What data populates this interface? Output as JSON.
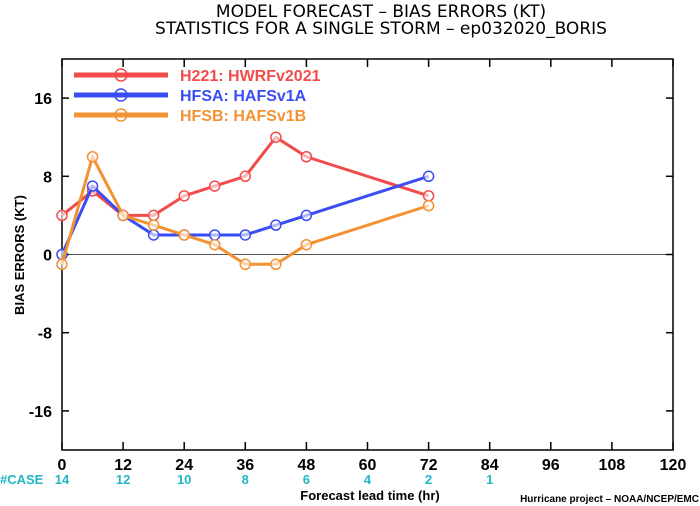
{
  "chart_data": {
    "type": "line",
    "title": "MODEL FORECAST – BIAS ERRORS (KT)",
    "subtitle": "STATISTICS FOR A SINGLE STORM – ep032020_BORIS",
    "xlabel": "Forecast lead time (hr)",
    "ylabel": "BIAS ERRORS (KT)",
    "xlim": [
      0,
      120
    ],
    "ylim": [
      -20,
      20
    ],
    "xticks": [
      0,
      12,
      24,
      36,
      48,
      60,
      72,
      84,
      96,
      108,
      120
    ],
    "yticks": [
      -16,
      -8,
      0,
      8,
      16
    ],
    "legend_position": "top-left",
    "zero_line": true,
    "case_label": "#CASE",
    "case_x": [
      0,
      12,
      24,
      36,
      48,
      60,
      72,
      84
    ],
    "case_counts": [
      "14",
      "12",
      "10",
      "8",
      "6",
      "4",
      "2",
      "1"
    ],
    "credit": "Hurricane project – NOAA/NCEP/EMC",
    "series": [
      {
        "name": "H221: HWRFv2021",
        "color": "#f24b4b",
        "x": [
          0,
          6,
          12,
          18,
          24,
          30,
          36,
          42,
          48,
          72
        ],
        "values": [
          4,
          6.5,
          4,
          4,
          6,
          7,
          8,
          12,
          10,
          6
        ]
      },
      {
        "name": "HFSA: HAFSv1A",
        "color": "#3a4df2",
        "x": [
          0,
          6,
          12,
          18,
          24,
          30,
          36,
          42,
          48,
          72
        ],
        "values": [
          0,
          7,
          4,
          2,
          2,
          2,
          2,
          3,
          4,
          8
        ]
      },
      {
        "name": "HFSB: HAFSv1B",
        "color": "#f29233",
        "x": [
          0,
          6,
          12,
          18,
          24,
          30,
          36,
          42,
          48,
          72
        ],
        "values": [
          -1,
          10,
          4,
          3,
          2,
          1,
          -1,
          -1,
          1,
          5
        ]
      }
    ]
  }
}
